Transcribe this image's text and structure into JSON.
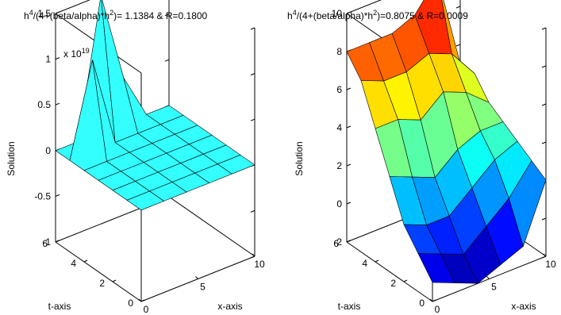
{
  "chart_data": [
    {
      "type": "surface",
      "title": "h^4/(4+(beta/alpha)*h^2)= 1.1384 & R=0.1800",
      "title_parts": {
        "base1": "h",
        "sup1": "4",
        "mid": "/(4+(beta/alpha)*h",
        "sup2": "2",
        "rest": ")= 1.1384 & R=0.1800"
      },
      "xlabel": "x-axis",
      "ylabel": "t-axis",
      "zlabel": "Solution",
      "z_exponent": {
        "base": "x 10",
        "exp": "19"
      },
      "xlim": [
        0,
        10
      ],
      "ylim": [
        0,
        6
      ],
      "zlim": [
        -1,
        1.5
      ],
      "xticks": [
        "0",
        "5",
        "10"
      ],
      "yticks": [
        "0",
        "2",
        "4",
        "6"
      ],
      "zticks": [
        "-1",
        "-0.5",
        "0",
        "0.5",
        "1",
        "1.5"
      ],
      "colormap": "jet",
      "face_color": "#33ffff",
      "x": [
        0,
        2,
        4,
        6,
        8,
        10
      ],
      "t": [
        0,
        1,
        2,
        3,
        4,
        5,
        6
      ],
      "z": [
        [
          0,
          0,
          0,
          0,
          0,
          0
        ],
        [
          0,
          0,
          0,
          0,
          0,
          0
        ],
        [
          0,
          0,
          0,
          0,
          0,
          0
        ],
        [
          0,
          0,
          0,
          0,
          0,
          0
        ],
        [
          0,
          0,
          0,
          0,
          0,
          0
        ],
        [
          0,
          1.0,
          0,
          0,
          0,
          0
        ],
        [
          0,
          0,
          1.5,
          0.5,
          0,
          0
        ]
      ]
    },
    {
      "type": "surface",
      "title": "h^4/(4+(beta/alpha)*h^2)=0.8075 & R=0.0009",
      "title_parts": {
        "base1": "h",
        "sup1": "4",
        "mid": "/(4+(beta/alpha)*h",
        "sup2": "2",
        "rest": ")=0.8075 & R=0.0009"
      },
      "xlabel": "x-axis",
      "ylabel": "t-axis",
      "zlabel": "Solution",
      "xlim": [
        0,
        10
      ],
      "ylim": [
        0,
        6
      ],
      "zlim": [
        -2,
        10
      ],
      "xticks": [
        "0",
        "5",
        "10"
      ],
      "yticks": [
        "0",
        "2",
        "4",
        "6"
      ],
      "zticks": [
        "-2",
        "0",
        "2",
        "4",
        "6",
        "8",
        "10"
      ],
      "colormap": "jet",
      "x": [
        0,
        2,
        4,
        6,
        8,
        10
      ],
      "t": [
        0,
        1,
        2,
        3,
        4,
        5,
        6
      ],
      "z": [
        [
          -1,
          -1.5,
          -2,
          -1.5,
          -1,
          2
        ],
        [
          0,
          -0.5,
          -1,
          0,
          1,
          2.5
        ],
        [
          1,
          0.5,
          0.5,
          1.5,
          2.5,
          3
        ],
        [
          3,
          2.5,
          2,
          3,
          3.5,
          3.5
        ],
        [
          5,
          5,
          4.5,
          5.5,
          5,
          4
        ],
        [
          7,
          6.5,
          6.5,
          7,
          6.5,
          5
        ],
        [
          8,
          8,
          8,
          8.5,
          10,
          5
        ]
      ]
    }
  ]
}
